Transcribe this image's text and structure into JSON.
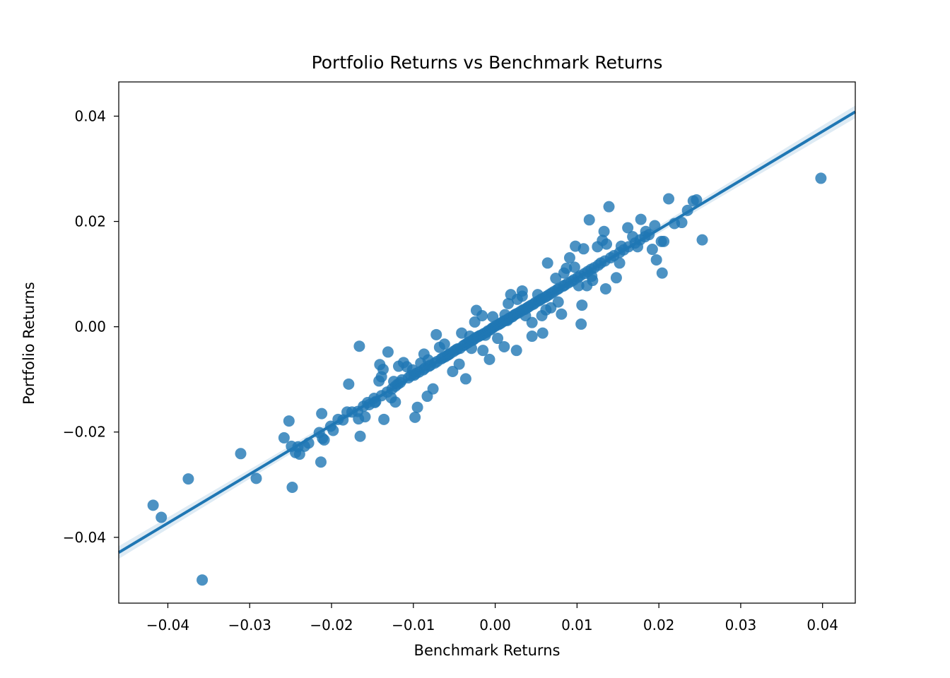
{
  "chart_data": {
    "type": "scatter",
    "title": "Portfolio Returns vs Benchmark Returns",
    "xlabel": "Benchmark Returns",
    "ylabel": "Portfolio Returns",
    "xlim": [
      -0.046,
      0.044
    ],
    "ylim": [
      -0.0525,
      0.0465
    ],
    "xticks": [
      -0.04,
      -0.03,
      -0.02,
      -0.01,
      0.0,
      0.01,
      0.02,
      0.03,
      0.04
    ],
    "xtick_labels": [
      "−0.04",
      "−0.03",
      "−0.02",
      "−0.01",
      "0.00",
      "0.01",
      "0.02",
      "0.03",
      "0.04"
    ],
    "yticks": [
      0.04,
      0.02,
      0.0,
      -0.02,
      -0.04
    ],
    "ytick_labels": [
      "0.04",
      "0.02",
      "0.00",
      "−0.02",
      "−0.04"
    ],
    "grid": false,
    "legend": "none",
    "colors": {
      "points": "#1f77b4",
      "line": "#1f77b4",
      "band": "#1f77b4"
    },
    "regression": {
      "slope": 0.93,
      "intercept": -0.0001
    },
    "series": [
      {
        "x": [
          -0.0418,
          -0.0408,
          -0.0375,
          -0.0358,
          -0.0311,
          -0.0292,
          -0.0248,
          -0.0258,
          -0.0252,
          -0.0241,
          -0.0239,
          -0.0233,
          -0.0228,
          -0.0213,
          -0.0212,
          -0.0209,
          -0.0211,
          -0.0198,
          -0.0186,
          -0.0181,
          -0.0179,
          -0.0168,
          -0.0166,
          -0.0165,
          -0.0159,
          -0.0156,
          -0.0147,
          -0.0142,
          -0.0141,
          -0.0136,
          -0.0137,
          -0.0131,
          -0.0127,
          -0.0124,
          -0.0118,
          -0.0112,
          -0.0108,
          -0.0098,
          -0.0095,
          -0.0091,
          -0.0083,
          -0.0082,
          -0.0076,
          -0.0072,
          -0.0068,
          -0.0058,
          -0.0052,
          -0.0041,
          -0.0036,
          -0.0031,
          -0.0023,
          -0.0015,
          -0.0012,
          -0.0007,
          0.0003,
          0.0012,
          0.0015,
          0.0019,
          0.0026,
          0.0033,
          0.0037,
          0.0045,
          0.0052,
          0.0058,
          0.0064,
          0.0068,
          0.0074,
          0.0081,
          0.0087,
          0.0091,
          0.0098,
          0.0105,
          0.0106,
          0.0108,
          0.0112,
          0.0115,
          0.0118,
          0.0125,
          0.0131,
          0.0133,
          0.0135,
          0.0136,
          0.0139,
          0.0148,
          0.0154,
          0.0162,
          0.0168,
          0.0174,
          0.0178,
          0.0184,
          0.0192,
          0.0195,
          0.0197,
          0.0203,
          0.0204,
          0.0206,
          0.0212,
          0.0219,
          0.0228,
          0.0235,
          0.0242,
          0.0246,
          0.0253,
          0.0398,
          -0.0249,
          -0.0244,
          -0.0215,
          -0.0201,
          -0.0192,
          -0.0175,
          -0.0161,
          -0.0154,
          -0.0148,
          -0.0146,
          -0.0139,
          -0.0132,
          -0.0126,
          -0.0122,
          -0.0119,
          -0.0116,
          -0.0114,
          -0.0106,
          -0.0103,
          -0.0099,
          -0.0097,
          -0.0093,
          -0.0088,
          -0.0086,
          -0.0081,
          -0.0079,
          -0.0074,
          -0.0071,
          -0.0066,
          -0.0064,
          -0.0061,
          -0.0057,
          -0.0055,
          -0.0051,
          -0.0048,
          -0.0046,
          -0.0043,
          -0.0039,
          -0.0037,
          -0.0034,
          -0.0032,
          -0.0028,
          -0.0026,
          -0.0024,
          -0.0021,
          -0.0019,
          -0.0017,
          -0.0014,
          -0.0011,
          -0.0009,
          -0.0006,
          -0.0004,
          -0.0002,
          0.0001,
          0.0004,
          0.0006,
          0.0008,
          0.0011,
          0.0013,
          0.0016,
          0.0018,
          0.0021,
          0.0023,
          0.0025,
          0.0028,
          0.0031,
          0.0034,
          0.0036,
          0.0039,
          0.0041,
          0.0044,
          0.0047,
          0.0049,
          0.0053,
          0.0055,
          0.0057,
          0.0061,
          0.0063,
          0.0066,
          0.0069,
          0.0072,
          0.0076,
          0.0078,
          0.0083,
          0.0085,
          0.0089,
          0.0093,
          0.0096,
          0.0101,
          0.0104,
          0.0109,
          0.0113,
          0.0117,
          0.0121,
          0.0126,
          0.0129,
          0.0134,
          0.0141,
          0.0145,
          0.0152,
          0.0157,
          0.0163,
          0.0171,
          0.0177,
          0.0183,
          0.0188,
          0.0045,
          0.0027,
          -0.0016,
          -0.0044,
          -0.0139,
          -0.0167,
          -0.0122,
          -0.0087,
          0.0062,
          0.0097,
          0.0011,
          -0.0003,
          0.0077,
          0.0119,
          0.0152,
          -0.0062,
          -0.0101,
          -0.0025,
          0.0033,
          0.0057,
          0.0084,
          0.0102,
          -0.0029,
          0.0016
        ],
        "y": [
          -0.0339,
          -0.0362,
          -0.0289,
          -0.0481,
          -0.0241,
          -0.0288,
          -0.0305,
          -0.0211,
          -0.0179,
          -0.0228,
          -0.0242,
          -0.0227,
          -0.0221,
          -0.0257,
          -0.0165,
          -0.0215,
          -0.0212,
          -0.0197,
          -0.0177,
          -0.0162,
          -0.0109,
          -0.0161,
          -0.0037,
          -0.0208,
          -0.0171,
          -0.0144,
          -0.0144,
          -0.0103,
          -0.0072,
          -0.0176,
          -0.0081,
          -0.0048,
          -0.0135,
          -0.0104,
          -0.0075,
          -0.0068,
          -0.0076,
          -0.0172,
          -0.0153,
          -0.0069,
          -0.0132,
          -0.0063,
          -0.0118,
          -0.0015,
          -0.0039,
          -0.0054,
          -0.0085,
          -0.0012,
          -0.0099,
          -0.0018,
          0.0031,
          -0.0045,
          -0.0016,
          -0.0062,
          -0.0022,
          0.0023,
          0.0012,
          0.0061,
          -0.0045,
          0.0068,
          0.0021,
          -0.0018,
          0.0061,
          -0.0012,
          0.0121,
          0.0036,
          0.0092,
          0.0024,
          0.0111,
          0.0131,
          0.0153,
          0.0005,
          0.0041,
          0.0148,
          0.0078,
          0.0203,
          0.0096,
          0.0152,
          0.0164,
          0.0181,
          0.0072,
          0.0157,
          0.0228,
          0.0093,
          0.0153,
          0.0188,
          0.0171,
          0.0152,
          0.0204,
          0.0181,
          0.0147,
          0.0192,
          0.0127,
          0.0162,
          0.0102,
          0.0162,
          0.0243,
          0.0196,
          0.0198,
          0.0221,
          0.0239,
          0.0241,
          0.0165,
          0.0282,
          -0.0227,
          -0.0239,
          -0.0201,
          -0.0189,
          -0.0176,
          -0.0162,
          -0.0151,
          -0.0148,
          -0.0136,
          -0.0142,
          -0.0131,
          -0.0124,
          -0.0118,
          -0.0113,
          -0.0109,
          -0.0106,
          -0.0101,
          -0.0097,
          -0.0093,
          -0.0092,
          -0.0089,
          -0.0086,
          -0.0082,
          -0.0079,
          -0.0075,
          -0.0073,
          -0.0069,
          -0.0066,
          -0.0061,
          -0.0059,
          -0.0057,
          -0.0053,
          -0.0051,
          -0.0047,
          -0.0044,
          -0.0042,
          -0.0041,
          -0.0036,
          -0.0034,
          -0.0031,
          -0.0029,
          -0.0026,
          -0.0024,
          -0.0021,
          -0.0019,
          -0.0017,
          -0.0016,
          -0.0013,
          -0.0011,
          -0.0008,
          -0.0006,
          -0.0003,
          -0.0001,
          0.0002,
          0.0004,
          0.0006,
          0.0008,
          0.0011,
          0.0012,
          0.0015,
          0.0017,
          0.0019,
          0.0022,
          0.0024,
          0.0026,
          0.0029,
          0.0032,
          0.0033,
          0.0036,
          0.0038,
          0.0041,
          0.0043,
          0.0046,
          0.0049,
          0.0051,
          0.0053,
          0.0056,
          0.0058,
          0.0061,
          0.0064,
          0.0067,
          0.0071,
          0.0073,
          0.0077,
          0.0079,
          0.0083,
          0.0086,
          0.0089,
          0.0094,
          0.0097,
          0.0101,
          0.0105,
          0.0109,
          0.0112,
          0.0117,
          0.0121,
          0.0125,
          0.0131,
          0.0135,
          0.0141,
          0.0146,
          0.0152,
          0.0159,
          0.0165,
          0.0171,
          0.0175,
          0.0008,
          0.0052,
          0.0021,
          -0.0071,
          -0.0095,
          -0.0175,
          -0.0143,
          -0.0052,
          0.0032,
          0.0113,
          -0.0038,
          0.0019,
          0.0047,
          0.0088,
          0.0121,
          -0.0033,
          -0.0082,
          0.0009,
          0.0058,
          0.0021,
          0.0102,
          0.0078,
          -0.0041,
          0.0044
        ]
      }
    ]
  }
}
